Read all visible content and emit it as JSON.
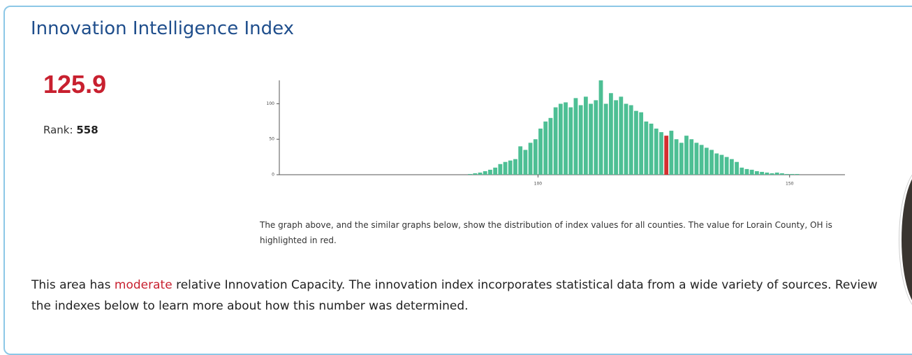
{
  "header": {
    "title": "Innovation Intelligence Index"
  },
  "rank": {
    "label": "Rank:",
    "value": "558"
  },
  "chart_data": {
    "type": "histogram",
    "highlight_value": 125.9,
    "bins": [
      86,
      87,
      88,
      89,
      90,
      91,
      92,
      93,
      94,
      95,
      96,
      97,
      98,
      99,
      100,
      101,
      102,
      103,
      104,
      105,
      106,
      107,
      108,
      109,
      110,
      111,
      112,
      113,
      114,
      115,
      116,
      117,
      118,
      119,
      120,
      121,
      122,
      123,
      124,
      125,
      126,
      127,
      128,
      129,
      130,
      131,
      132,
      133,
      134,
      135,
      136,
      137,
      138,
      139,
      140,
      141,
      142,
      143,
      144,
      145,
      146,
      147,
      148,
      149,
      150,
      151,
      152,
      153
    ],
    "counts": [
      1,
      2,
      3,
      5,
      7,
      10,
      15,
      18,
      20,
      22,
      40,
      35,
      45,
      50,
      65,
      75,
      80,
      95,
      100,
      102,
      95,
      108,
      98,
      110,
      100,
      105,
      133,
      100,
      115,
      105,
      110,
      100,
      98,
      90,
      88,
      75,
      72,
      65,
      60,
      55,
      62,
      50,
      45,
      55,
      50,
      45,
      42,
      38,
      35,
      30,
      28,
      25,
      22,
      18,
      10,
      8,
      7,
      5,
      4,
      3,
      2,
      3,
      2,
      1,
      1,
      1,
      0
    ],
    "color": "#4dbf94",
    "highlight_color": "#d32f2f",
    "xlim": [
      48.6,
      161
    ],
    "xticks": [
      100,
      150
    ],
    "ylim": [
      0,
      133
    ],
    "yticks": [
      0,
      50,
      100
    ]
  },
  "caption": "The graph above, and the similar graphs below, show the distribution of index values for all counties. The value for Lorain County, OH is highlighted in red.",
  "description": {
    "before": "This area has ",
    "highlight": "moderate",
    "after": " relative Innovation Capacity. The innovation index incorporates statistical data from a wide variety of sources. Review the indexes below to learn more about how this number was determined."
  }
}
